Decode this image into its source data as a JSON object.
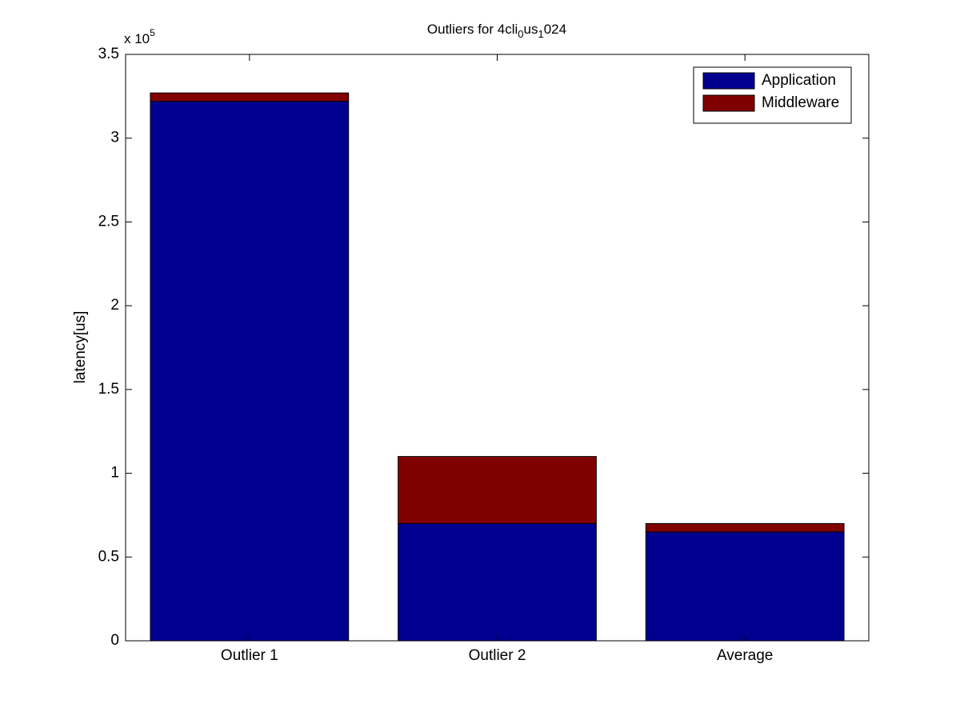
{
  "chart_data": {
    "type": "stacked_bar",
    "title_parts": [
      "Outliers for 4cli",
      "0",
      "us",
      "1",
      "024"
    ],
    "y_label": "latency[us]",
    "y_scale_base": "x 10",
    "y_scale_exponent": "5",
    "categories": [
      "Outlier 1",
      "Outlier 2",
      "Average"
    ],
    "series": [
      {
        "name": "Application",
        "color": "#00008f",
        "values": [
          3.22,
          0.7,
          0.65
        ]
      },
      {
        "name": "Middleware",
        "color": "#800000",
        "values": [
          0.05,
          0.4,
          0.05
        ]
      }
    ],
    "ylim": [
      0,
      3.5
    ],
    "yticks": [
      0,
      0.5,
      1,
      1.5,
      2,
      2.5,
      3,
      3.5
    ],
    "legend": "northeast",
    "grid": false
  }
}
